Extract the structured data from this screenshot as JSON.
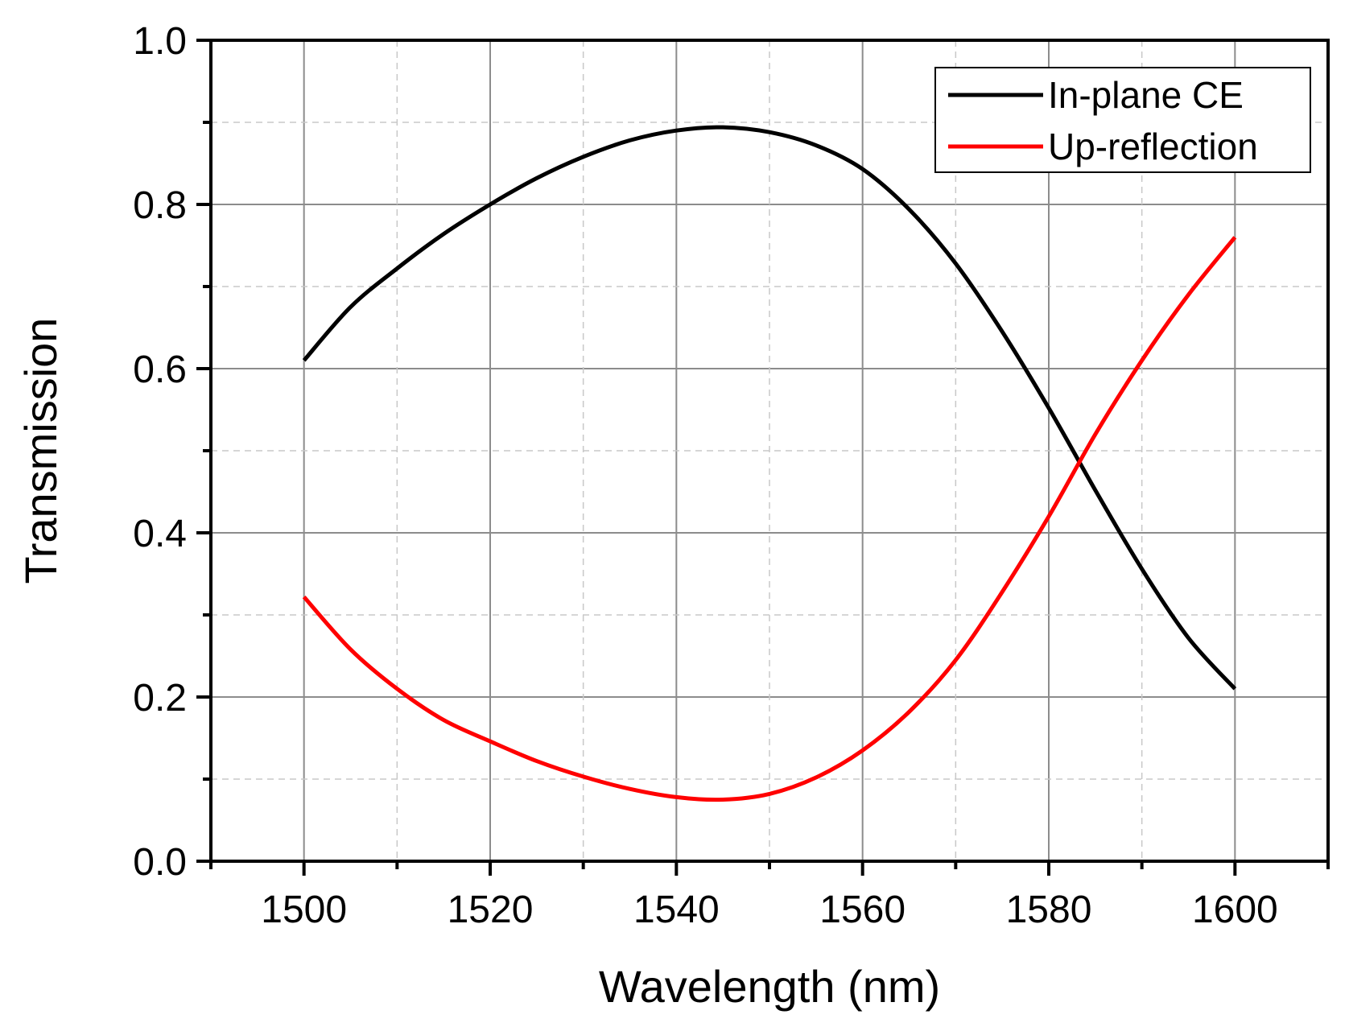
{
  "chart_data": {
    "type": "line",
    "title": "",
    "xlabel": "Wavelength (nm)",
    "ylabel": "Transmission",
    "xlim": [
      1490,
      1610
    ],
    "ylim": [
      0.0,
      1.0
    ],
    "x_major_ticks": [
      1500,
      1520,
      1540,
      1560,
      1580,
      1600
    ],
    "x_minor_ticks": [
      1490,
      1510,
      1530,
      1550,
      1570,
      1590,
      1610
    ],
    "y_major_ticks": [
      0.0,
      0.2,
      0.4,
      0.6,
      0.8,
      1.0
    ],
    "y_minor_ticks": [
      0.1,
      0.3,
      0.5,
      0.7,
      0.9
    ],
    "x_tick_labels": [
      "1500",
      "1520",
      "1540",
      "1560",
      "1580",
      "1600"
    ],
    "y_tick_labels": [
      "0.0",
      "0.2",
      "0.4",
      "0.6",
      "0.8",
      "1.0"
    ],
    "grid": true,
    "legend_position": "top-right",
    "series": [
      {
        "name": "In-plane CE",
        "color": "#000000",
        "x": [
          1500,
          1505,
          1510,
          1515,
          1520,
          1525,
          1530,
          1535,
          1540,
          1545,
          1550,
          1555,
          1560,
          1565,
          1570,
          1575,
          1580,
          1585,
          1590,
          1595,
          1600
        ],
        "y": [
          0.61,
          0.675,
          0.722,
          0.764,
          0.8,
          0.832,
          0.858,
          0.878,
          0.89,
          0.894,
          0.888,
          0.872,
          0.843,
          0.794,
          0.728,
          0.645,
          0.552,
          0.452,
          0.356,
          0.272,
          0.21
        ]
      },
      {
        "name": "Up-reflection",
        "color": "#ff0000",
        "x": [
          1500,
          1505,
          1510,
          1515,
          1520,
          1525,
          1530,
          1535,
          1540,
          1545,
          1550,
          1555,
          1560,
          1565,
          1570,
          1575,
          1580,
          1585,
          1590,
          1595,
          1600
        ],
        "y": [
          0.322,
          0.258,
          0.21,
          0.172,
          0.146,
          0.122,
          0.103,
          0.088,
          0.078,
          0.075,
          0.082,
          0.102,
          0.135,
          0.182,
          0.245,
          0.328,
          0.42,
          0.52,
          0.61,
          0.69,
          0.76
        ]
      }
    ]
  }
}
